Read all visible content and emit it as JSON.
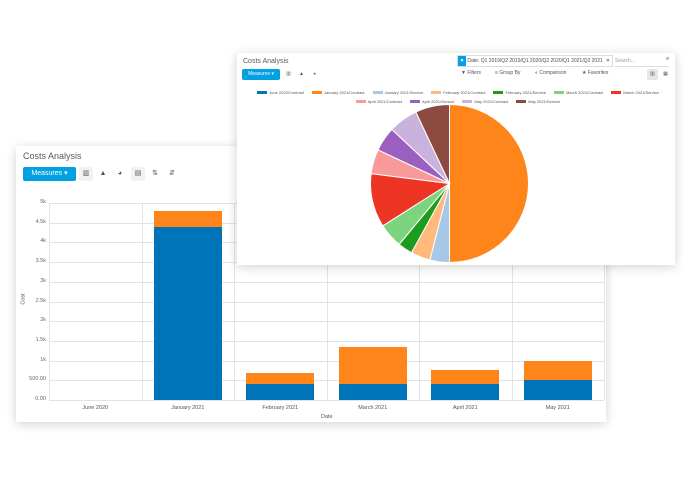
{
  "bar_view": {
    "title": "Costs Analysis",
    "measures_label": "Measures",
    "toolbar_icons": [
      "bar-chart-icon",
      "line-chart-icon",
      "pie-chart-icon",
      "stack-icon",
      "sort-asc-icon",
      "sort-desc-icon"
    ],
    "chart_data": {
      "type": "bar",
      "stacked": true,
      "xlabel": "Date",
      "ylabel": "Cost",
      "ylim": [
        0,
        5000
      ],
      "yticks": [
        "0.00",
        "500.00",
        "1k",
        "1.5k",
        "2k",
        "2.5k",
        "3k",
        "3.5k",
        "4k",
        "4.5k",
        "5k"
      ],
      "categories": [
        "June 2020",
        "January 2021",
        "February 2021",
        "March 2021",
        "April 2021",
        "May 2021"
      ],
      "series": [
        {
          "color": "#0074b8",
          "values": [
            0,
            4400,
            400,
            400,
            400,
            500
          ]
        },
        {
          "color": "#ff851b",
          "values": [
            0,
            400,
            280,
            950,
            350,
            500
          ]
        }
      ]
    }
  },
  "pie_view": {
    "title": "Costs Analysis",
    "measures_label": "Measures",
    "facet_text": "Date: Q1 2019/Q2 2019/Q1 2020/Q2 2020/Q1 2021/Q2 2021",
    "search_placeholder": "Search...",
    "options": [
      {
        "icon": "filter-icon",
        "glyph": "▼",
        "label": "Filters"
      },
      {
        "icon": "group-by-icon",
        "glyph": "≡",
        "label": "Group By"
      },
      {
        "icon": "comparison-icon",
        "glyph": "◐",
        "label": "Comparison"
      },
      {
        "icon": "favorites-icon",
        "glyph": "★",
        "label": "Favorites"
      }
    ],
    "chart_data": {
      "type": "pie",
      "series": [
        {
          "name": "June 2020/Contract",
          "color": "#0074b8",
          "value": 0
        },
        {
          "name": "January 2021/Contract",
          "color": "#ff851b",
          "value": 50
        },
        {
          "name": "January 2021/Service",
          "color": "#a6c8e6",
          "value": 4
        },
        {
          "name": "February 2021/Contract",
          "color": "#ffb97a",
          "value": 4
        },
        {
          "name": "February 2021/Service",
          "color": "#1e9c1e",
          "value": 3
        },
        {
          "name": "March 2021/Contract",
          "color": "#7ed47e",
          "value": 5
        },
        {
          "name": "March 2021/Service",
          "color": "#ee3524",
          "value": 11
        },
        {
          "name": "April 2021/Contract",
          "color": "#f99a9a",
          "value": 5
        },
        {
          "name": "April 2021/Service",
          "color": "#9b5fc0",
          "value": 5
        },
        {
          "name": "May 2021/Contract",
          "color": "#c9b3dc",
          "value": 6
        },
        {
          "name": "May 2021/Service",
          "color": "#8c4a40",
          "value": 7
        }
      ]
    }
  }
}
